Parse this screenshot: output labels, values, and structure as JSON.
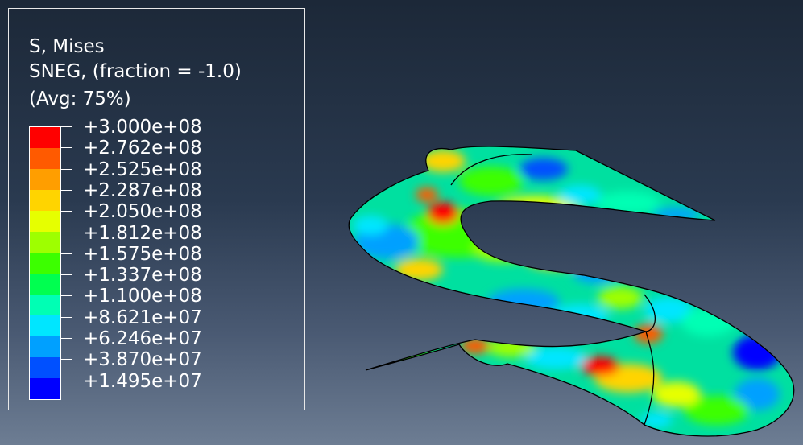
{
  "legend": {
    "title_line1": "S, Mises",
    "title_line2": "SNEG, (fraction = -1.0)",
    "title_line3": "(Avg: 75%)",
    "labels": [
      "+3.000e+08",
      "+2.762e+08",
      "+2.525e+08",
      "+2.287e+08",
      "+2.050e+08",
      "+1.812e+08",
      "+1.575e+08",
      "+1.337e+08",
      "+1.100e+08",
      "+8.621e+07",
      "+6.246e+07",
      "+3.870e+07",
      "+1.495e+07"
    ],
    "colors": [
      "#ff0000",
      "#ff5a00",
      "#ff9e00",
      "#ffd400",
      "#e6ff00",
      "#9eff00",
      "#3cff00",
      "#00ff50",
      "#00ffb4",
      "#00e6ff",
      "#00a0ff",
      "#0050ff",
      "#0000ff"
    ]
  },
  "scene": {
    "background_top": "#1c2838",
    "background_bottom": "#6d7d93",
    "model_edge_color": "#000000"
  }
}
